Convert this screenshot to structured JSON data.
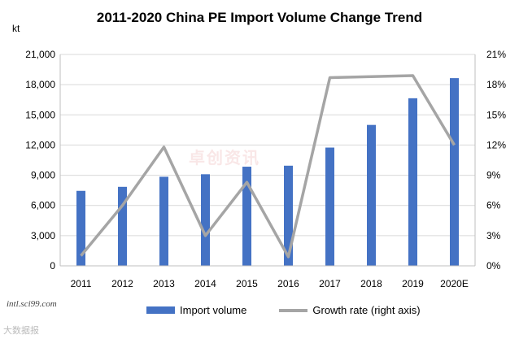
{
  "chart_data": {
    "type": "bar",
    "title": "2011-2020 China PE Import Volume Change Trend",
    "ylabel": "kt",
    "categories": [
      "2011",
      "2012",
      "2013",
      "2014",
      "2015",
      "2016",
      "2017",
      "2018",
      "2019",
      "2020E"
    ],
    "series": [
      {
        "name": "Import volume",
        "type": "bar",
        "axis": "left",
        "color": "#4472C4",
        "values": [
          7450,
          7850,
          8850,
          9100,
          9850,
          9950,
          11750,
          14000,
          16650,
          18650
        ]
      },
      {
        "name": "Growth rate (right axis)",
        "type": "line",
        "axis": "right",
        "color": "#A5A5A5",
        "values": [
          0.01,
          0.06,
          0.118,
          0.03,
          0.083,
          0.009,
          0.187,
          0.188,
          0.189,
          0.12
        ]
      }
    ],
    "left_axis": {
      "min": 0,
      "max": 21000,
      "ticks": [
        0,
        3000,
        6000,
        9000,
        12000,
        15000,
        18000,
        21000
      ],
      "tick_labels": [
        "0",
        "3,000",
        "6,000",
        "9,000",
        "12,000",
        "15,000",
        "18,000",
        "21,000"
      ]
    },
    "right_axis": {
      "min": 0,
      "max": 0.21,
      "ticks": [
        0,
        0.03,
        0.06,
        0.09,
        0.12,
        0.15,
        0.18,
        0.21
      ],
      "tick_labels": [
        "0%",
        "3%",
        "6%",
        "9%",
        "12%",
        "15%",
        "18%",
        "21%"
      ]
    },
    "grid": true,
    "legend": "bottom"
  },
  "source": "intl.sci99.com",
  "watermark_center": "卓创资讯",
  "watermark_bottom": "大数据报"
}
